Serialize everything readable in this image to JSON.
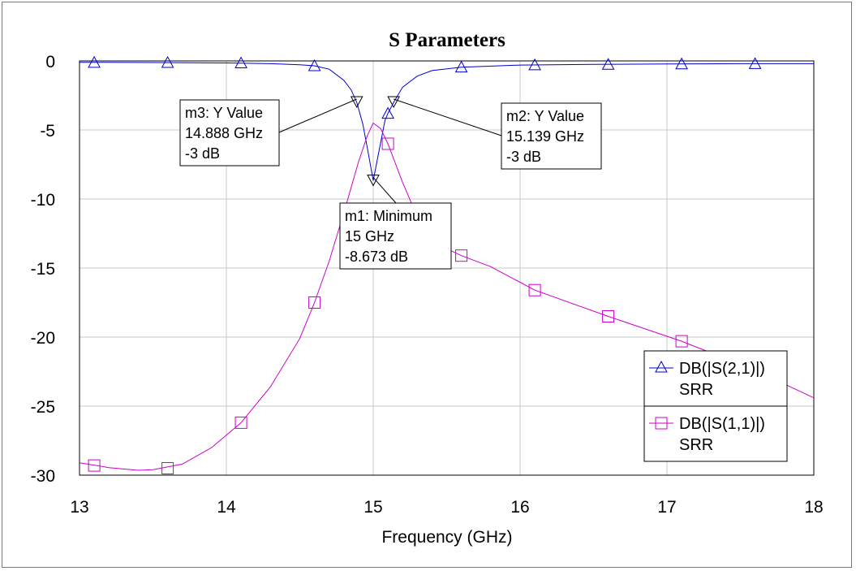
{
  "chart_data": {
    "type": "line",
    "title": "S Parameters",
    "xlabel": "Frequency (GHz)",
    "ylabel": "",
    "xlim": [
      13,
      18
    ],
    "ylim": [
      -30,
      0
    ],
    "x_ticks": [
      "13",
      "14",
      "15",
      "16",
      "17",
      "18"
    ],
    "y_ticks": [
      "0",
      "-5",
      "-10",
      "-15",
      "-20",
      "-25",
      "-30"
    ],
    "grid": true,
    "legend_position": "bottom-right",
    "series": [
      {
        "name": "DB(|S(2,1)|)",
        "subname": "SRR",
        "color": "#0000cc",
        "symbol": "triangle",
        "x": [
          13.0,
          13.5,
          14.0,
          14.3,
          14.5,
          14.6,
          14.7,
          14.8,
          14.85,
          14.888,
          14.93,
          14.97,
          15.0,
          15.04,
          15.08,
          15.1,
          15.139,
          15.2,
          15.3,
          15.4,
          15.6,
          16.0,
          16.5,
          17.0,
          17.5,
          18.0
        ],
        "y": [
          -0.1,
          -0.12,
          -0.15,
          -0.2,
          -0.28,
          -0.35,
          -0.6,
          -1.4,
          -2.1,
          -3.0,
          -4.6,
          -6.9,
          -8.673,
          -6.5,
          -4.3,
          -3.8,
          -3.0,
          -1.9,
          -1.1,
          -0.7,
          -0.45,
          -0.3,
          -0.25,
          -0.22,
          -0.2,
          -0.2
        ],
        "marker_x": [
          13.1,
          13.6,
          14.1,
          14.6,
          15.1,
          15.6,
          16.1,
          16.6,
          17.1,
          17.6
        ],
        "marker_y": [
          -0.11,
          -0.12,
          -0.15,
          -0.35,
          -3.8,
          -0.45,
          -0.29,
          -0.25,
          -0.22,
          -0.2
        ]
      },
      {
        "name": "DB(|S(1,1)|)",
        "subname": "SRR",
        "color": "#cc00cc",
        "symbol": "square",
        "x": [
          13.0,
          13.2,
          13.4,
          13.5,
          13.7,
          13.9,
          14.1,
          14.3,
          14.5,
          14.6,
          14.7,
          14.8,
          14.9,
          14.96,
          15.0,
          15.05,
          15.1,
          15.2,
          15.3,
          15.4,
          15.5,
          15.6,
          15.8,
          16.1,
          16.6,
          17.1,
          17.6,
          18.0
        ],
        "y": [
          -29.1,
          -29.45,
          -29.65,
          -29.6,
          -29.2,
          -28.0,
          -26.2,
          -23.6,
          -20.1,
          -17.5,
          -14.5,
          -11.0,
          -7.3,
          -5.4,
          -4.5,
          -4.9,
          -6.0,
          -8.8,
          -11.3,
          -12.8,
          -13.6,
          -14.1,
          -14.9,
          -16.6,
          -18.5,
          -20.3,
          -22.4,
          -24.4
        ],
        "marker_x": [
          13.1,
          13.6,
          14.1,
          14.6,
          15.1,
          15.6,
          16.1,
          16.6,
          17.1
        ],
        "marker_y": [
          -29.3,
          -29.5,
          -26.2,
          -17.5,
          -6.0,
          -14.1,
          -16.6,
          -18.5,
          -20.3
        ]
      }
    ],
    "markers": [
      {
        "id": "m3",
        "lines": [
          "m3: Y Value",
          "14.888 GHz",
          "-3 dB"
        ],
        "x": 14.888,
        "y": -3,
        "series": 0
      },
      {
        "id": "m2",
        "lines": [
          "m2: Y Value",
          "15.139 GHz",
          "-3 dB"
        ],
        "x": 15.139,
        "y": -3,
        "series": 0
      },
      {
        "id": "m1",
        "lines": [
          "m1: Minimum",
          "15 GHz",
          "-8.673 dB"
        ],
        "x": 15.0,
        "y": -8.673,
        "series": 0
      }
    ]
  }
}
